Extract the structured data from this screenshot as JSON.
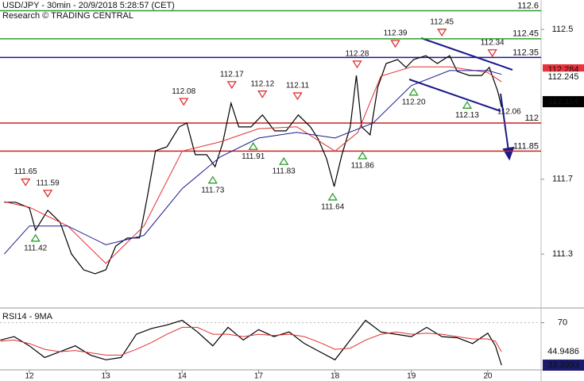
{
  "chart_data": [
    {
      "type": "line",
      "title": "USD/JPY - 30min - 20/9/2018 5:28:57 (CET)",
      "subtitle": "Research © TRADING CENTRAL",
      "xlim": [
        -0.385,
        6.698
      ],
      "ylim": [
        111.025,
        112.657
      ],
      "xticks": [
        {
          "value": 0,
          "label": "12"
        },
        {
          "value": 1,
          "label": "13"
        },
        {
          "value": 2,
          "label": "14"
        },
        {
          "value": 3,
          "label": "17"
        },
        {
          "value": 4,
          "label": "18"
        },
        {
          "value": 5,
          "label": "19"
        },
        {
          "value": 6,
          "label": "20"
        }
      ],
      "yticks": [
        111.3,
        111.7,
        112.5
      ],
      "series": [
        {
          "color": "#000000",
          "x": [
            -0.33,
            -0.18,
            0,
            0.08,
            0.24,
            0.4,
            0.55,
            0.71,
            0.86,
            1.0,
            1.13,
            1.28,
            1.44,
            1.54,
            1.65,
            1.8,
            1.96,
            2.06,
            2.17,
            2.32,
            2.43,
            2.53,
            2.64,
            2.74,
            2.9,
            3.05,
            3.21,
            3.36,
            3.52,
            3.68,
            3.78,
            3.89,
            3.99,
            4.09,
            4.2,
            4.28,
            4.35,
            4.46,
            4.56,
            4.67,
            4.82,
            4.93,
            5.03,
            5.19,
            5.34,
            5.5,
            5.6,
            5.76,
            5.92,
            6.02,
            6.13,
            6.18
          ],
          "values": [
            111.577,
            111.577,
            111.547,
            111.428,
            111.534,
            111.471,
            111.301,
            111.216,
            111.195,
            111.216,
            111.343,
            111.386,
            111.386,
            111.598,
            111.852,
            111.873,
            111.979,
            112.0,
            111.831,
            111.831,
            111.767,
            111.894,
            112.106,
            111.979,
            111.979,
            112.043,
            111.958,
            111.958,
            112.043,
            111.979,
            111.915,
            111.81,
            111.661,
            111.831,
            111.979,
            112.254,
            111.979,
            111.937,
            112.191,
            112.318,
            112.339,
            112.297,
            112.339,
            112.36,
            112.318,
            112.36,
            112.276,
            112.254,
            112.254,
            112.297,
            112.17,
            112.085
          ]
        },
        {
          "color": "#e03030",
          "x": [
            -0.33,
            0,
            0.5,
            1.0,
            1.5,
            2.0,
            2.5,
            3.0,
            3.5,
            4.0,
            4.3,
            4.6,
            5.0,
            5.5,
            6.0,
            6.18
          ],
          "values": [
            111.58,
            111.55,
            111.45,
            111.25,
            111.45,
            111.85,
            111.9,
            111.97,
            111.98,
            111.85,
            111.95,
            112.25,
            112.3,
            112.3,
            112.27,
            112.22
          ]
        },
        {
          "color": "#1a1a8c",
          "x": [
            -0.33,
            0,
            0.5,
            1.0,
            1.5,
            2.0,
            2.5,
            3.0,
            3.5,
            4.0,
            4.5,
            5.0,
            5.5,
            6.0,
            6.18
          ],
          "values": [
            111.3,
            111.45,
            111.45,
            111.35,
            111.4,
            111.65,
            111.82,
            111.92,
            111.95,
            111.92,
            112.0,
            112.2,
            112.28,
            112.28,
            112.26
          ]
        }
      ],
      "levels": [
        {
          "value": 112.6,
          "color": "#2e9e2e"
        },
        {
          "value": 112.45,
          "color": "#2e9e2e"
        },
        {
          "value": 112.35,
          "color": "#1a1a8c"
        },
        {
          "value": 112,
          "color": "#cc2222"
        },
        {
          "value": 111.85,
          "color": "#cc2222"
        }
      ],
      "price_tags": [
        {
          "value": 112.284,
          "color": "#e8333a",
          "text_color": "#ffffff"
        },
        {
          "value": 112.245,
          "color": "#ffffff",
          "text_color": "#e8333a"
        },
        {
          "value": 112.114,
          "color": "#000000",
          "text_color": "#ffffff"
        }
      ],
      "annotations": [
        {
          "x": -0.05,
          "value": 111.65,
          "label": "111.65",
          "kind": "high"
        },
        {
          "x": 0.24,
          "value": 111.59,
          "label": "111.59",
          "kind": "high"
        },
        {
          "x": 0.08,
          "value": 111.42,
          "label": "111.42",
          "kind": "low"
        },
        {
          "x": 2.02,
          "value": 112.08,
          "label": "112.08",
          "kind": "high"
        },
        {
          "x": 2.65,
          "value": 112.17,
          "label": "112.17",
          "kind": "high"
        },
        {
          "x": 3.05,
          "value": 112.12,
          "label": "112.12",
          "kind": "high"
        },
        {
          "x": 3.51,
          "value": 112.11,
          "label": "112.11",
          "kind": "high"
        },
        {
          "x": 2.4,
          "value": 111.73,
          "label": "111.73",
          "kind": "low"
        },
        {
          "x": 2.93,
          "value": 111.91,
          "label": "111.91",
          "kind": "low"
        },
        {
          "x": 3.33,
          "value": 111.83,
          "label": "111.83",
          "kind": "low"
        },
        {
          "x": 3.97,
          "value": 111.64,
          "label": "111.64",
          "kind": "low"
        },
        {
          "x": 4.29,
          "value": 112.28,
          "label": "112.28",
          "kind": "high"
        },
        {
          "x": 4.79,
          "value": 112.39,
          "label": "112.39",
          "kind": "high"
        },
        {
          "x": 5.4,
          "value": 112.45,
          "label": "112.45",
          "kind": "high"
        },
        {
          "x": 6.06,
          "value": 112.34,
          "label": "112.34",
          "kind": "high"
        },
        {
          "x": 5.03,
          "value": 112.2,
          "label": "112.20",
          "kind": "low"
        },
        {
          "x": 5.73,
          "value": 112.13,
          "label": "112.13",
          "kind": "low"
        },
        {
          "x": 4.36,
          "value": 111.86,
          "label": "111.86",
          "kind": "low"
        },
        {
          "x": 6.28,
          "value": 112.06,
          "label": "112.06",
          "kind": "label"
        }
      ]
    },
    {
      "type": "line",
      "title": "RSI14 - 9MA",
      "xlim": [
        -0.385,
        6.698
      ],
      "ylim": [
        29.3,
        81.3
      ],
      "yticks": [
        70
      ],
      "series": [
        {
          "color": "#000000",
          "x": [
            -0.38,
            -0.2,
            0,
            0.2,
            0.4,
            0.6,
            0.8,
            1.0,
            1.2,
            1.4,
            1.6,
            1.8,
            2.0,
            2.2,
            2.4,
            2.6,
            2.8,
            3.0,
            3.2,
            3.4,
            3.6,
            3.8,
            4.0,
            4.2,
            4.4,
            4.6,
            4.8,
            5.0,
            5.2,
            5.4,
            5.6,
            5.8,
            6.0,
            6.1,
            6.18
          ],
          "values": [
            55,
            58,
            50,
            40,
            45,
            50,
            42,
            38,
            40,
            60,
            65,
            68,
            72,
            62,
            50,
            66,
            55,
            64,
            58,
            62,
            52,
            45,
            38,
            55,
            72,
            62,
            60,
            58,
            66,
            58,
            57,
            52,
            61,
            50,
            33.4
          ]
        },
        {
          "color": "#e03030",
          "x": [
            -0.38,
            -0.2,
            0,
            0.2,
            0.4,
            0.6,
            0.8,
            1.0,
            1.2,
            1.4,
            1.6,
            1.8,
            2.0,
            2.2,
            2.4,
            2.6,
            2.8,
            3.0,
            3.2,
            3.4,
            3.6,
            3.8,
            4.0,
            4.2,
            4.4,
            4.6,
            4.8,
            5.0,
            5.2,
            5.4,
            5.6,
            5.8,
            6.0,
            6.1,
            6.18
          ],
          "values": [
            54,
            55,
            52,
            47,
            45,
            46,
            44,
            42,
            42,
            47,
            53,
            60,
            66,
            66,
            60,
            60,
            58,
            60,
            59,
            60,
            58,
            53,
            47,
            48,
            55,
            60,
            62,
            60,
            61,
            60,
            58,
            56,
            56,
            54,
            44.9
          ]
        }
      ],
      "price_tags": [
        {
          "value": 44.9486,
          "color": "#ffffff",
          "text_color": "#e8333a"
        },
        {
          "value": 33.3993,
          "color": "#1a1a6e",
          "text_color": "#ffffff"
        }
      ]
    }
  ]
}
